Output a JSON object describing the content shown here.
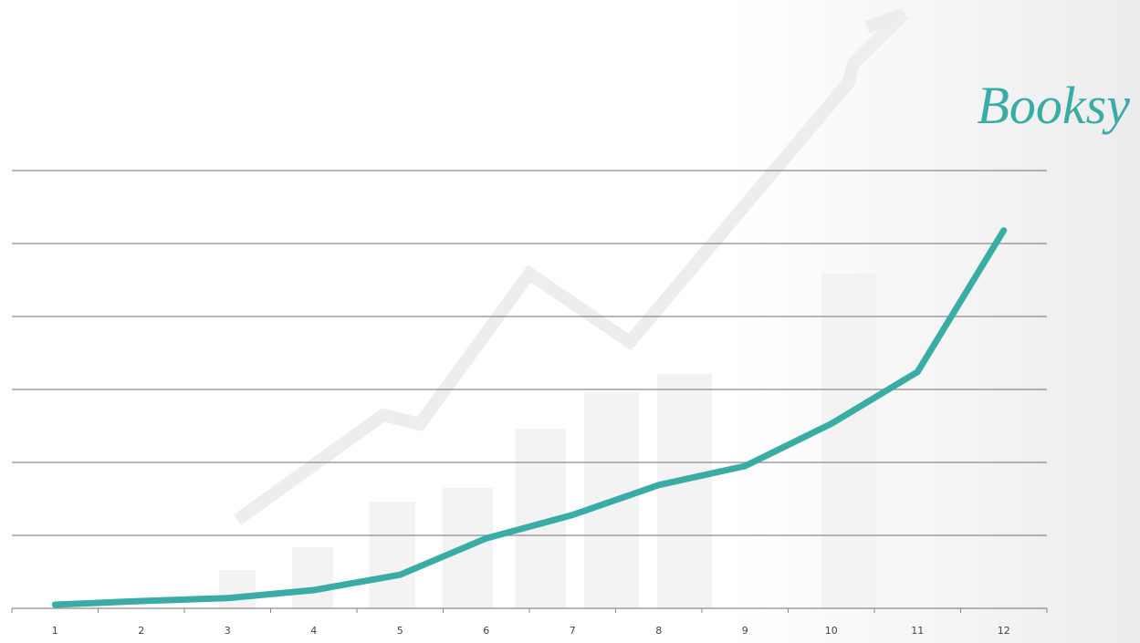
{
  "chart_data": {
    "type": "line",
    "logo": "Booksy",
    "categories": [
      "1",
      "2",
      "3",
      "4",
      "5",
      "6",
      "7",
      "8",
      "9",
      "10",
      "11",
      "12"
    ],
    "series": [
      {
        "color": "#3aaca6",
        "values": [
          0.05,
          0.1,
          0.14,
          0.25,
          0.46,
          0.96,
          1.28,
          1.69,
          1.95,
          2.53,
          3.24,
          5.18
        ]
      }
    ],
    "ylim": [
      0,
      6
    ],
    "yticks": [
      0,
      1,
      2,
      3,
      4,
      5,
      6
    ],
    "grid": true
  }
}
